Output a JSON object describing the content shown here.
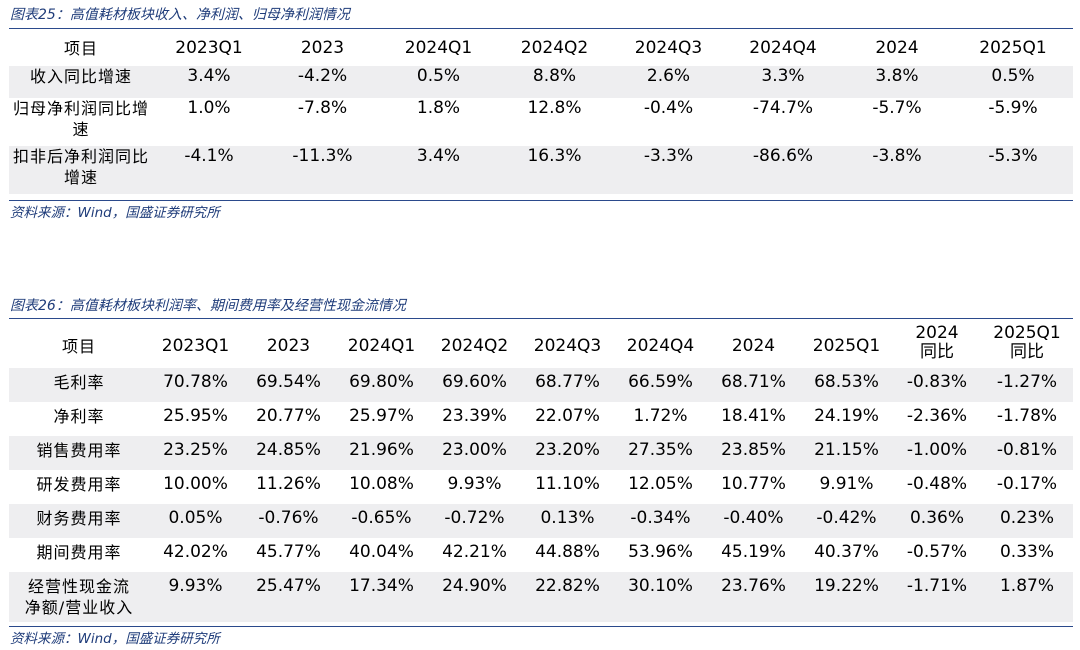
{
  "table25": {
    "caption": "图表25：高值耗材板块收入、净利润、归母净利润情况",
    "headers": [
      "项目",
      "2023Q1",
      "2023",
      "2024Q1",
      "2024Q2",
      "2024Q3",
      "2024Q4",
      "2024",
      "2025Q1"
    ],
    "rows": [
      {
        "label_l1": "收入同比增速",
        "label_l2": "",
        "values": [
          "3.4%",
          "-4.2%",
          "0.5%",
          "8.8%",
          "2.6%",
          "3.3%",
          "3.8%",
          "0.5%"
        ]
      },
      {
        "label_l1": "归母净利润同比增",
        "label_l2": "速",
        "values": [
          "1.0%",
          "-7.8%",
          "1.8%",
          "12.8%",
          "-0.4%",
          "-74.7%",
          "-5.7%",
          "-5.9%"
        ]
      },
      {
        "label_l1": "扣非后净利润同比",
        "label_l2": "增速",
        "values": [
          "-4.1%",
          "-11.3%",
          "3.4%",
          "16.3%",
          "-3.3%",
          "-86.6%",
          "-3.8%",
          "-5.3%"
        ]
      }
    ],
    "source": "资料来源：Wind，国盛证券研究所"
  },
  "table26": {
    "caption": "图表26：高值耗材板块利润率、期间费用率及经营性现金流情况",
    "headers": [
      "项目",
      "2023Q1",
      "2023",
      "2024Q1",
      "2024Q2",
      "2024Q3",
      "2024Q4",
      "2024",
      "2025Q1"
    ],
    "header_yoy": [
      {
        "l1": "2024",
        "l2": "同比"
      },
      {
        "l1": "2025Q1",
        "l2": "同比"
      }
    ],
    "rows": [
      {
        "label_l1": "毛利率",
        "label_l2": "",
        "values": [
          "70.78%",
          "69.54%",
          "69.80%",
          "69.60%",
          "68.77%",
          "66.59%",
          "68.71%",
          "68.53%",
          "-0.83%",
          "-1.27%"
        ]
      },
      {
        "label_l1": "净利率",
        "label_l2": "",
        "values": [
          "25.95%",
          "20.77%",
          "25.97%",
          "23.39%",
          "22.07%",
          "1.72%",
          "18.41%",
          "24.19%",
          "-2.36%",
          "-1.78%"
        ]
      },
      {
        "label_l1": "销售费用率",
        "label_l2": "",
        "values": [
          "23.25%",
          "24.85%",
          "21.96%",
          "23.00%",
          "23.20%",
          "27.35%",
          "23.85%",
          "21.15%",
          "-1.00%",
          "-0.81%"
        ]
      },
      {
        "label_l1": "研发费用率",
        "label_l2": "",
        "values": [
          "10.00%",
          "11.26%",
          "10.08%",
          "9.93%",
          "11.10%",
          "12.05%",
          "10.77%",
          "9.91%",
          "-0.48%",
          "-0.17%"
        ]
      },
      {
        "label_l1": "财务费用率",
        "label_l2": "",
        "values": [
          "0.05%",
          "-0.76%",
          "-0.65%",
          "-0.72%",
          "0.13%",
          "-0.34%",
          "-0.40%",
          "-0.42%",
          "0.36%",
          "0.23%"
        ]
      },
      {
        "label_l1": "期间费用率",
        "label_l2": "",
        "values": [
          "42.02%",
          "45.77%",
          "40.04%",
          "42.21%",
          "44.88%",
          "53.96%",
          "45.19%",
          "40.37%",
          "-0.57%",
          "0.33%"
        ]
      },
      {
        "label_l1": "经营性现金流",
        "label_l2": "净额/营业收入",
        "values": [
          "9.93%",
          "25.47%",
          "17.34%",
          "24.90%",
          "22.82%",
          "30.10%",
          "23.76%",
          "19.22%",
          "-1.71%",
          "1.87%"
        ]
      }
    ],
    "source": "资料来源：Wind，国盛证券研究所"
  }
}
